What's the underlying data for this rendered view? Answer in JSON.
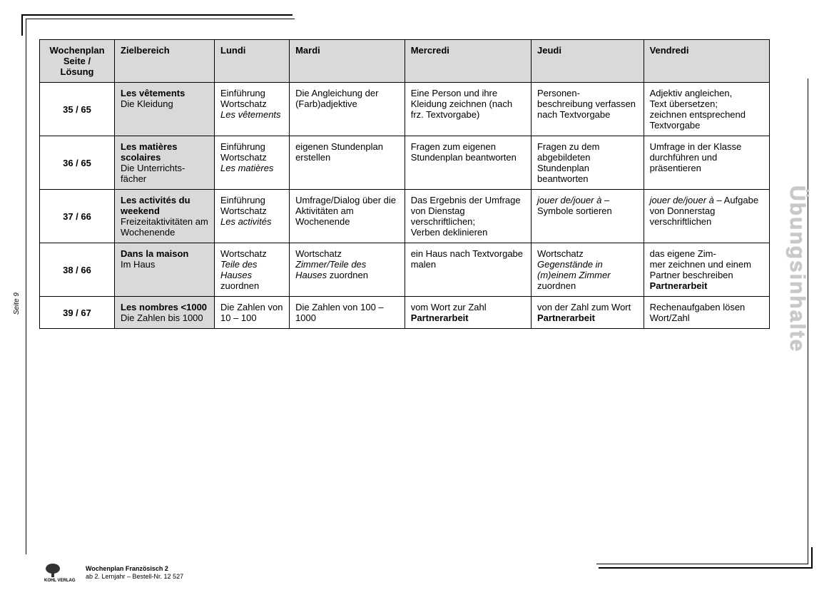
{
  "sideTitle": "Übungsinhalte",
  "pageNum": "Seite 9",
  "footer": {
    "publisher": "KOHL VERLAG",
    "line1": "Wochenplan Französisch 2",
    "line2": "ab 2. Lernjahr   –   Bestell-Nr. 12 527"
  },
  "table": {
    "headers": [
      "Wochenplan Seite / Lösung",
      "Zielbereich",
      "Lundi",
      "Mardi",
      "Mercredi",
      "Jeudi",
      "Vendredi"
    ],
    "rows": [
      {
        "page": "35 / 65",
        "ziel": "<span class=\"b\">Les vêtements</span><br>Die Kleidung",
        "lundi": "Einführung Wortschatz<br><span class=\"i\">Les vêtements</span>",
        "mardi": "Die Angleichung der (Farb)adjektive",
        "mercredi": "Eine Person und ihre Kleidung zeichnen (nach frz. Textvorgabe)",
        "jeudi": "Personen-<br>beschreibung verfassen nach Textvorgabe",
        "vendredi": "Adjektiv angleichen,<br>Text übersetzen;<br>zeichnen entsprechend Textvorgabe"
      },
      {
        "page": "36 / 65",
        "ziel": "<span class=\"b\">Les matières scolaires</span><br>Die Unterrichts-<br>fächer",
        "lundi": "Einführung Wortschatz<br><span class=\"i\">Les matières</span>",
        "mardi": "eigenen Stundenplan erstellen",
        "mercredi": "Fragen zum eigenen Stundenplan beantworten",
        "jeudi": "Fragen zu dem abgebildeten Stundenplan beantworten",
        "vendredi": "Umfrage in der Klasse durchführen und präsentieren"
      },
      {
        "page": "37 / 66",
        "ziel": "<span class=\"b\">Les activités du weekend</span><br>Freizeitaktivitäten am Wochenende",
        "lundi": "Einführung Wortschatz<br><span class=\"i\">Les activités</span>",
        "mardi": "Umfrage/Dialog über die Aktivitäten am Wochenende",
        "mercredi": "Das Ergebnis der Umfrage von Dienstag verschriftlichen;<br>Verben deklinieren",
        "jeudi": "<span class=\"i\">jouer de/jouer à</span> – Symbole sortieren",
        "vendredi": "<span class=\"i\">jouer de/jouer à</span> – Aufgabe von Donnerstag verschriftlichen"
      },
      {
        "page": "38 / 66",
        "ziel": "<span class=\"b\">Dans la maison</span><br>Im Haus",
        "lundi": "Wortschatz<br><span class=\"i\">Teile des Hauses</span> zuordnen",
        "mardi": "Wortschatz<br><span class=\"i\">Zimmer/Teile des Hauses</span> zuordnen",
        "mercredi": "ein Haus nach Textvorgabe malen",
        "jeudi": "Wortschatz<br><span class=\"i\">Gegenstände in (m)einem Zimmer</span> zuordnen",
        "vendredi": "das eigene Zim-<br>mer zeichnen und einem Partner beschreiben<br><span class=\"b\">Partnerarbeit</span>"
      },
      {
        "page": "39 / 67",
        "ziel": "<span class=\"b\">Les nombres &lt;1000</span><br>Die Zahlen bis 1000",
        "lundi": "Die Zahlen von 10 – 100",
        "mardi": "Die Zahlen von 100 – 1000",
        "mercredi": "vom Wort zur Zahl<br><span class=\"b\">Partnerarbeit</span>",
        "jeudi": "von der Zahl zum Wort<br><span class=\"b\">Partnerarbeit</span>",
        "vendredi": "Rechenaufgaben lösen<br>Wort/Zahl"
      }
    ]
  }
}
